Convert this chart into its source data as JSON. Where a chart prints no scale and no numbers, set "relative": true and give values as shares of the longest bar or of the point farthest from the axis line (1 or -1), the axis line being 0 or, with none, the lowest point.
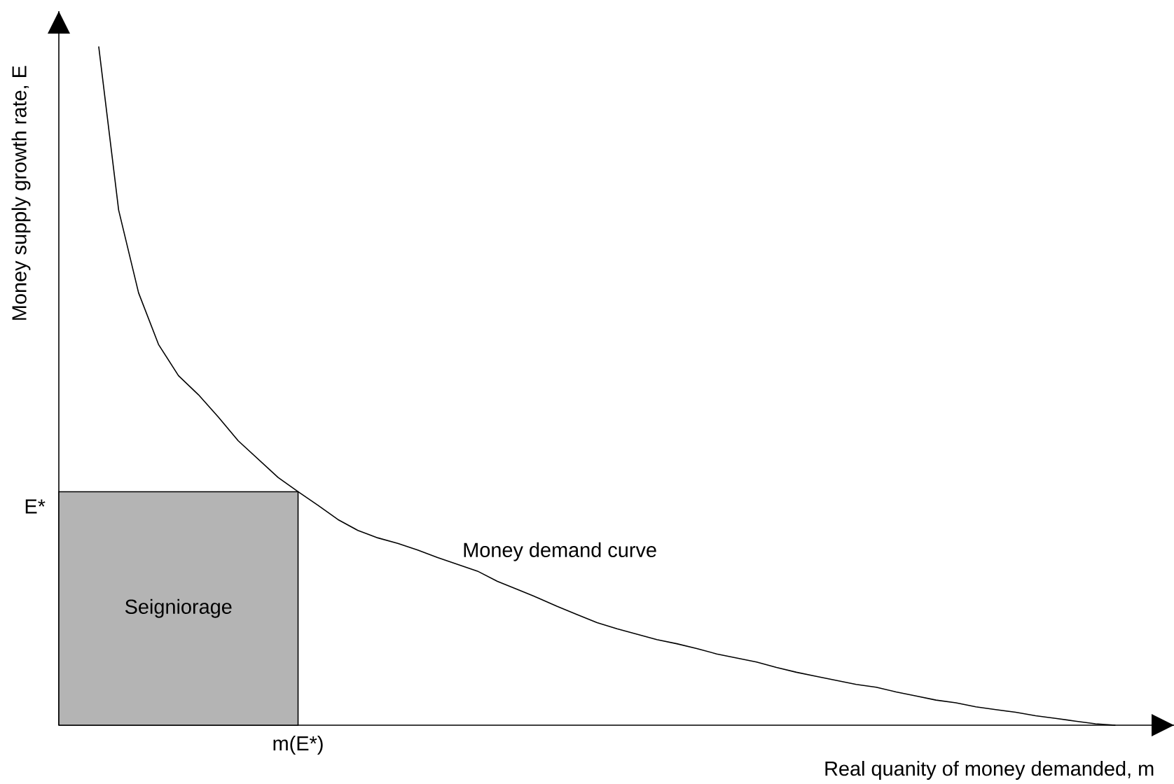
{
  "chart_data": {
    "type": "line",
    "relative": true,
    "xlabel": "Real quanity of money demanded, m",
    "ylabel": "Money supply growth rate, E",
    "categories": [
      null,
      null,
      null,
      null,
      null,
      null,
      null,
      null,
      null,
      null,
      null,
      null,
      null,
      null,
      null,
      null,
      null,
      null,
      null,
      null,
      null,
      null,
      null,
      null,
      null,
      null,
      null,
      null,
      null,
      null,
      null,
      null,
      null,
      null,
      null,
      null,
      null,
      null,
      null,
      null,
      null,
      null,
      null,
      null,
      null,
      null,
      null,
      null,
      null,
      null,
      null,
      null,
      null,
      null
    ],
    "series": [
      {
        "name": "Money demand curve",
        "color": "#000000",
        "values": [
          null,
          null,
          1.0,
          0.759,
          0.637,
          0.561,
          0.515,
          0.487,
          0.454,
          0.419,
          0.392,
          0.365,
          0.344,
          0.324,
          0.303,
          0.287,
          0.276,
          0.268,
          0.258,
          0.247,
          0.237,
          0.227,
          0.212,
          0.2,
          0.188,
          0.175,
          0.163,
          0.151,
          0.142,
          0.134,
          0.126,
          0.12,
          0.113,
          0.105,
          0.099,
          0.093,
          0.085,
          0.078,
          0.072,
          0.066,
          0.06,
          0.056,
          0.049,
          0.043,
          0.037,
          0.033,
          0.027,
          0.023,
          0.019,
          0.014,
          0.01,
          0.006,
          0.002,
          0.0
        ]
      },
      {
        "name": "Seigniorage",
        "type": "area",
        "color": "#b4b4b4",
        "values": [
          0.344,
          0.344,
          0.344,
          0.344,
          0.344,
          0.344,
          0.344,
          0.344,
          0.344,
          0.344,
          0.344,
          0.344,
          0.344,
          null,
          null,
          null,
          null,
          null,
          null,
          null,
          null,
          null,
          null,
          null,
          null,
          null,
          null,
          null,
          null,
          null,
          null,
          null,
          null,
          null,
          null,
          null,
          null,
          null,
          null,
          null,
          null,
          null,
          null,
          null,
          null,
          null,
          null,
          null,
          null,
          null,
          null,
          null,
          null,
          null
        ]
      }
    ],
    "annotations": [
      "E*",
      "m(E*)"
    ]
  }
}
